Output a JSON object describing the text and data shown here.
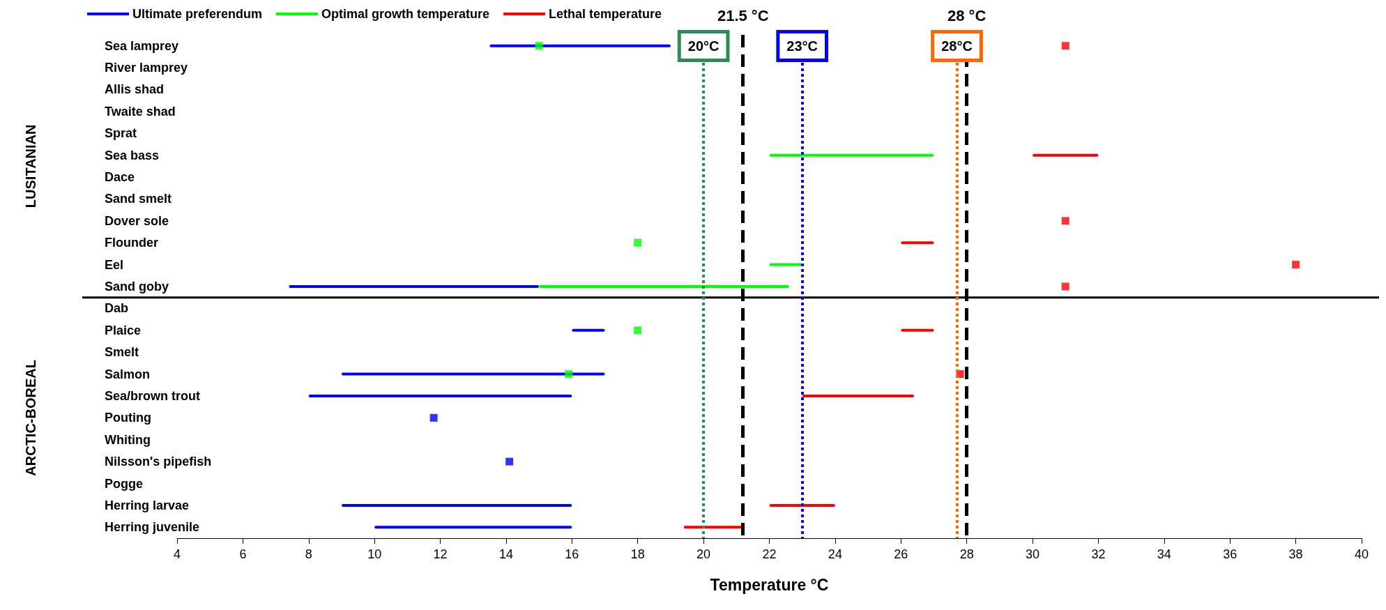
{
  "chart_data": {
    "type": "bar",
    "orientation": "horizontal",
    "xlabel": "Temperature °C",
    "categories": [
      "Sea lamprey",
      "River lamprey",
      "Allis shad",
      "Twaite shad",
      "Sprat",
      "Sea bass",
      "Dace",
      "Sand smelt",
      "Dover sole",
      "Flounder",
      "Eel",
      "Sand goby",
      "Dab",
      "Plaice",
      "Smelt",
      "Salmon",
      "Sea/brown trout",
      "Pouting",
      "Whiting",
      "Nilsson's pipefish",
      "Pogge",
      "Herring larvae",
      "Herring juvenile"
    ],
    "series": [
      {
        "name": "Ultimate preferendum",
        "color": "#0000ff",
        "base": [
          13.5,
          null,
          null,
          null,
          null,
          null,
          null,
          null,
          null,
          null,
          null,
          7.4,
          null,
          16,
          null,
          9,
          8,
          null,
          null,
          null,
          null,
          9,
          10
        ],
        "values": [
          5.5,
          null,
          null,
          null,
          null,
          null,
          null,
          null,
          null,
          null,
          null,
          7.6,
          null,
          1,
          null,
          8,
          8,
          null,
          null,
          null,
          null,
          7,
          6
        ]
      },
      {
        "name": "Optimal growth temperature",
        "color": "#00ff00",
        "base": [
          null,
          null,
          null,
          null,
          null,
          22,
          null,
          null,
          null,
          null,
          22,
          15,
          null,
          null,
          null,
          null,
          null,
          null,
          null,
          null,
          null,
          null,
          null
        ],
        "values": [
          null,
          null,
          null,
          null,
          null,
          5,
          null,
          null,
          null,
          null,
          1,
          7.6,
          null,
          null,
          null,
          null,
          null,
          null,
          null,
          null,
          null,
          null,
          null
        ]
      },
      {
        "name": "Lethal temperature",
        "color": "#ff0000",
        "base": [
          null,
          null,
          null,
          null,
          null,
          30,
          null,
          null,
          null,
          26,
          null,
          null,
          null,
          26,
          null,
          null,
          23,
          null,
          null,
          null,
          null,
          22,
          19.4
        ],
        "values": [
          null,
          null,
          null,
          null,
          null,
          2,
          null,
          null,
          null,
          1,
          null,
          null,
          null,
          1,
          null,
          null,
          3.4,
          null,
          null,
          null,
          null,
          2,
          1.8
        ]
      },
      {
        "type": "scatter",
        "color": "#0000ff",
        "values": [
          null,
          null,
          null,
          null,
          null,
          null,
          null,
          null,
          null,
          null,
          null,
          null,
          null,
          null,
          null,
          null,
          null,
          11.8,
          null,
          14.1,
          null,
          null,
          null
        ]
      },
      {
        "type": "scatter",
        "color": "#00ff00",
        "values": [
          15,
          null,
          null,
          null,
          null,
          null,
          null,
          null,
          null,
          18,
          null,
          null,
          null,
          18,
          null,
          15.9,
          null,
          null,
          null,
          null,
          null,
          null,
          null
        ]
      },
      {
        "type": "scatter",
        "color": "#ff0000",
        "values": [
          31,
          null,
          null,
          null,
          null,
          null,
          null,
          null,
          31,
          null,
          38,
          31,
          null,
          null,
          null,
          27.8,
          null,
          null,
          null,
          null,
          null,
          null,
          null
        ]
      }
    ],
    "xlim": [
      4,
      40
    ],
    "xticks": [
      4,
      6,
      8,
      10,
      12,
      14,
      16,
      18,
      20,
      22,
      24,
      26,
      28,
      30,
      32,
      34,
      36,
      38,
      40
    ],
    "marker": "square",
    "legend": "top left",
    "ref_lines": [
      {
        "axis": "x",
        "value": 20,
        "label": "20°C",
        "color": "#2e8b57",
        "line_style": "dotted"
      },
      {
        "axis": "x",
        "value": 21.2,
        "label": "21.5 °C",
        "color": "#000000",
        "line_style": "dashed"
      },
      {
        "axis": "x",
        "value": 23,
        "label": "23°C",
        "color": "#0000ff",
        "line_style": "dotted"
      },
      {
        "axis": "x",
        "value": 27.7,
        "label": "28°C",
        "color": "#ff6600",
        "line_style": "dotted"
      },
      {
        "axis": "x",
        "value": 28,
        "label": "28 °C",
        "color": "#000000",
        "line_style": "dashed"
      },
      {
        "axis": "y",
        "value": "Dab",
        "color": "#000000",
        "line_style": "solid"
      }
    ],
    "annotations": [
      "LUSITANIAN",
      "ARCTIC-BOREAL"
    ]
  }
}
